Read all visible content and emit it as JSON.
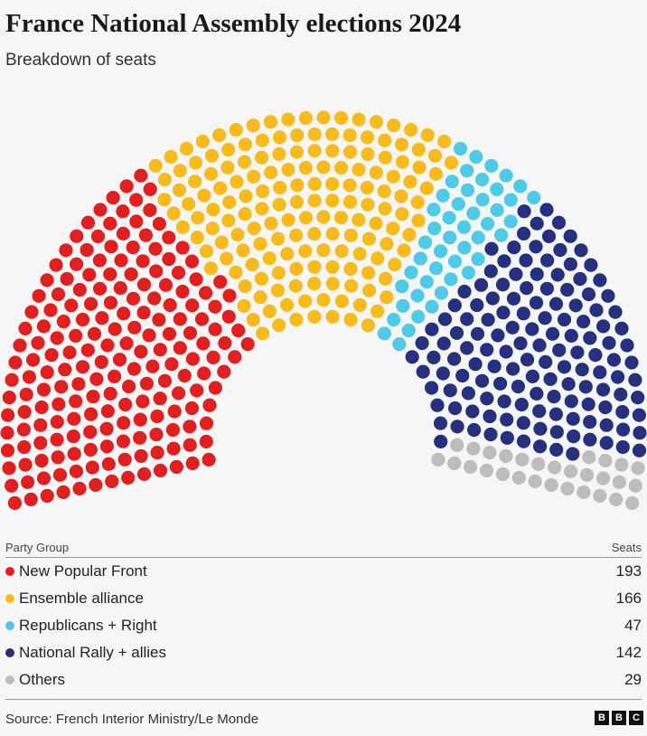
{
  "title": "France National Assembly elections 2024",
  "subtitle": "Breakdown of seats",
  "legend": {
    "header_party": "Party Group",
    "header_seats": "Seats"
  },
  "source": "Source: French Interior Ministry/Le Monde",
  "logo": [
    "B",
    "B",
    "C"
  ],
  "chart_data": {
    "type": "parliament",
    "total_seats": 577,
    "categories": [
      "New Popular Front",
      "Ensemble alliance",
      "Republicans + Right",
      "National Rally + allies",
      "Others"
    ],
    "values": [
      193,
      166,
      47,
      142,
      29
    ],
    "colors": [
      "#e02020",
      "#f7bb1e",
      "#4fcbe8",
      "#25307f",
      "#bdbdbd"
    ],
    "legend_placement": "bottom"
  }
}
